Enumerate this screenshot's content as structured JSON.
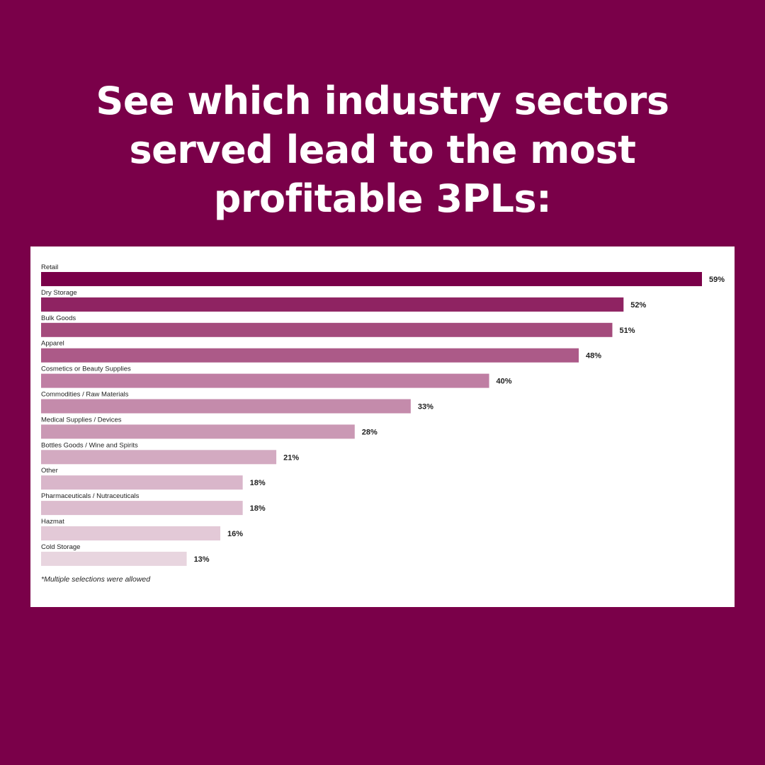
{
  "headline": {
    "line1": "See which industry sectors",
    "line2": "served lead to the most",
    "line3": "profitable 3PLs:"
  },
  "footnote": "*Multiple selections were allowed",
  "colors": {
    "background": "#7a0049",
    "panel": "#ffffff",
    "bars": [
      "#7a0049",
      "#8f2362",
      "#a44b7c",
      "#ac5a88",
      "#bf7ea3",
      "#c48bab",
      "#ca98b4",
      "#d3aac1",
      "#d9b6ca",
      "#dcbcce",
      "#e3c9d7",
      "#e8d5df"
    ]
  },
  "chart_data": {
    "type": "bar",
    "orientation": "horizontal",
    "unit": "%",
    "categories": [
      "Retail",
      "Dry Storage",
      "Bulk Goods",
      "Apparel",
      "Cosmetics or Beauty Supplies",
      "Commodities / Raw Materials",
      "Medical Supplies / Devices",
      "Bottles Goods / Wine and Spirits",
      "Other",
      "Pharmaceuticals / Nutraceuticals",
      "Hazmat",
      "Cold Storage"
    ],
    "values": [
      59,
      52,
      51,
      48,
      40,
      33,
      28,
      21,
      18,
      18,
      16,
      13
    ],
    "value_labels": [
      "59%",
      "52%",
      "51%",
      "48%",
      "40%",
      "33%",
      "28%",
      "21%",
      "18%",
      "18%",
      "16%",
      "13%"
    ],
    "xlim": [
      0,
      59
    ],
    "grid": false,
    "legend": "none"
  }
}
